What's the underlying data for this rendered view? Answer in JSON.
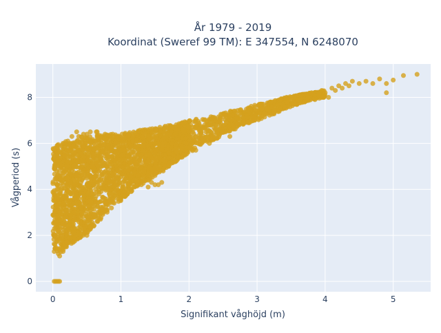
{
  "chart_data": {
    "type": "scatter",
    "title_lines": [
      "År 1979 - 2019",
      "Koordinat (Sweref 99 TM): E 347554, N 6248070"
    ],
    "xlabel": "Signifikant våghöjd (m)",
    "ylabel": "Vågperiod (s)",
    "xlim": [
      -0.25,
      5.55
    ],
    "ylim": [
      -0.45,
      9.45
    ],
    "x_ticks": [
      0,
      1,
      2,
      3,
      4,
      5
    ],
    "x_tick_labels": [
      "0",
      "1",
      "2",
      "3",
      "4",
      "5"
    ],
    "y_ticks": [
      0,
      2,
      4,
      6,
      8
    ],
    "y_tick_labels": [
      "0",
      "2",
      "4",
      "6",
      "8"
    ],
    "grid": true,
    "series": [
      {
        "color": "#d4a11e",
        "points": [
          [
            0.02,
            0.0
          ],
          [
            0.04,
            0.0
          ],
          [
            0.06,
            0.0
          ],
          [
            0.08,
            0.0
          ],
          [
            0.1,
            0.0
          ],
          [
            0.02,
            1.3
          ],
          [
            0.03,
            1.6
          ],
          [
            0.04,
            2.0
          ],
          [
            0.05,
            2.6
          ],
          [
            0.05,
            3.3
          ],
          [
            0.06,
            4.0
          ],
          [
            0.06,
            4.8
          ],
          [
            0.07,
            5.3
          ],
          [
            0.07,
            5.8
          ],
          [
            0.08,
            1.2
          ],
          [
            0.09,
            2.2
          ],
          [
            0.1,
            3.0
          ],
          [
            0.1,
            3.8
          ],
          [
            0.11,
            4.4
          ],
          [
            0.12,
            5.0
          ],
          [
            0.12,
            5.6
          ],
          [
            0.13,
            1.4
          ],
          [
            0.14,
            2.5
          ],
          [
            0.15,
            3.4
          ],
          [
            0.15,
            4.2
          ],
          [
            0.16,
            4.9
          ],
          [
            0.17,
            5.5
          ],
          [
            0.18,
            6.0
          ],
          [
            0.18,
            1.6
          ],
          [
            0.19,
            2.8
          ],
          [
            0.2,
            3.6
          ],
          [
            0.21,
            4.5
          ],
          [
            0.22,
            5.2
          ],
          [
            0.23,
            5.8
          ],
          [
            0.24,
            1.9
          ],
          [
            0.25,
            2.6
          ],
          [
            0.26,
            3.3
          ],
          [
            0.27,
            4.1
          ],
          [
            0.28,
            4.8
          ],
          [
            0.29,
            5.4
          ],
          [
            0.3,
            5.9
          ],
          [
            0.31,
            2.1
          ],
          [
            0.32,
            3.0
          ],
          [
            0.34,
            3.8
          ],
          [
            0.35,
            4.6
          ],
          [
            0.36,
            5.2
          ],
          [
            0.37,
            5.7
          ],
          [
            0.38,
            6.3
          ],
          [
            0.4,
            2.4
          ],
          [
            0.42,
            3.2
          ],
          [
            0.44,
            4.0
          ],
          [
            0.45,
            4.8
          ],
          [
            0.46,
            5.4
          ],
          [
            0.48,
            6.0
          ],
          [
            0.5,
            6.4
          ],
          [
            0.52,
            2.8
          ],
          [
            0.54,
            3.5
          ],
          [
            0.56,
            4.3
          ],
          [
            0.58,
            5.0
          ],
          [
            0.6,
            5.5
          ],
          [
            0.62,
            6.1
          ],
          [
            0.64,
            6.5
          ],
          [
            0.66,
            3.0
          ],
          [
            0.68,
            3.8
          ],
          [
            0.7,
            4.4
          ],
          [
            0.72,
            5.0
          ],
          [
            0.74,
            5.6
          ],
          [
            0.76,
            6.2
          ],
          [
            0.78,
            3.4
          ],
          [
            0.8,
            4.0
          ],
          [
            0.82,
            4.6
          ],
          [
            0.84,
            5.2
          ],
          [
            0.86,
            5.8
          ],
          [
            0.88,
            6.4
          ],
          [
            0.9,
            3.6
          ],
          [
            0.92,
            4.2
          ],
          [
            0.95,
            4.8
          ],
          [
            0.98,
            5.3
          ],
          [
            1.0,
            5.7
          ],
          [
            1.02,
            6.2
          ],
          [
            1.05,
            3.9
          ],
          [
            1.08,
            4.5
          ],
          [
            1.1,
            5.0
          ],
          [
            1.12,
            5.5
          ],
          [
            1.15,
            5.9
          ],
          [
            1.18,
            6.3
          ],
          [
            1.2,
            4.1
          ],
          [
            1.25,
            4.6
          ],
          [
            1.28,
            5.1
          ],
          [
            1.3,
            5.5
          ],
          [
            1.33,
            5.9
          ],
          [
            1.36,
            6.4
          ],
          [
            1.4,
            4.4
          ],
          [
            1.45,
            4.9
          ],
          [
            1.5,
            5.3
          ],
          [
            1.52,
            5.7
          ],
          [
            1.55,
            6.0
          ],
          [
            1.58,
            6.5
          ],
          [
            1.62,
            4.8
          ],
          [
            1.65,
            5.2
          ],
          [
            1.7,
            5.6
          ],
          [
            1.75,
            6.0
          ],
          [
            1.8,
            6.4
          ],
          [
            1.85,
            5.4
          ],
          [
            1.9,
            5.8
          ],
          [
            1.95,
            6.2
          ],
          [
            2.0,
            6.5
          ],
          [
            2.05,
            6.0
          ],
          [
            2.1,
            6.3
          ],
          [
            2.15,
            6.6
          ],
          [
            2.2,
            6.1
          ],
          [
            2.25,
            6.5
          ],
          [
            2.3,
            6.8
          ],
          [
            2.35,
            6.3
          ],
          [
            2.4,
            6.7
          ],
          [
            2.45,
            7.0
          ],
          [
            2.5,
            6.5
          ],
          [
            2.55,
            6.9
          ],
          [
            2.6,
            7.2
          ],
          [
            2.65,
            6.7
          ],
          [
            2.7,
            7.1
          ],
          [
            2.75,
            7.3
          ],
          [
            2.8,
            6.9
          ],
          [
            2.85,
            7.2
          ],
          [
            2.9,
            7.5
          ],
          [
            2.95,
            7.1
          ],
          [
            3.0,
            7.4
          ],
          [
            3.05,
            7.7
          ],
          [
            3.1,
            7.3
          ],
          [
            3.15,
            7.5
          ],
          [
            3.2,
            7.8
          ],
          [
            3.25,
            7.4
          ],
          [
            3.3,
            7.7
          ],
          [
            3.35,
            7.9
          ],
          [
            3.4,
            7.6
          ],
          [
            3.45,
            7.8
          ],
          [
            3.5,
            8.0
          ],
          [
            3.55,
            7.7
          ],
          [
            3.6,
            7.9
          ],
          [
            3.65,
            8.1
          ],
          [
            3.7,
            7.8
          ],
          [
            3.75,
            8.0
          ],
          [
            3.8,
            8.2
          ],
          [
            3.85,
            7.9
          ],
          [
            3.9,
            8.1
          ],
          [
            3.95,
            8.3
          ],
          [
            4.0,
            8.2
          ],
          [
            4.05,
            8.0
          ],
          [
            4.1,
            8.4
          ],
          [
            4.15,
            8.3
          ],
          [
            4.2,
            8.5
          ],
          [
            4.25,
            8.4
          ],
          [
            4.3,
            8.6
          ],
          [
            4.35,
            8.5
          ],
          [
            4.4,
            8.7
          ],
          [
            4.5,
            8.6
          ],
          [
            4.6,
            8.7
          ],
          [
            4.7,
            8.6
          ],
          [
            4.8,
            8.8
          ],
          [
            4.9,
            8.6
          ],
          [
            5.0,
            8.75
          ],
          [
            5.15,
            8.95
          ],
          [
            5.35,
            9.0
          ],
          [
            4.9,
            8.2
          ],
          [
            0.45,
            6.4
          ],
          [
            0.55,
            6.5
          ],
          [
            0.65,
            6.5
          ],
          [
            0.35,
            6.5
          ],
          [
            0.28,
            6.3
          ],
          [
            0.22,
            6.1
          ],
          [
            0.5,
            2.0
          ],
          [
            0.6,
            2.4
          ],
          [
            0.7,
            2.7
          ],
          [
            0.8,
            3.1
          ],
          [
            0.9,
            3.4
          ],
          [
            1.0,
            3.6
          ],
          [
            1.15,
            3.9
          ],
          [
            1.3,
            4.2
          ],
          [
            1.5,
            4.6
          ],
          [
            1.7,
            5.0
          ],
          [
            1.9,
            5.4
          ],
          [
            2.1,
            5.7
          ],
          [
            2.3,
            6.0
          ],
          [
            2.6,
            6.3
          ],
          [
            1.6,
            4.3
          ],
          [
            1.5,
            4.2
          ],
          [
            1.45,
            4.3
          ],
          [
            1.4,
            4.1
          ],
          [
            1.55,
            4.2
          ],
          [
            0.1,
            1.1
          ],
          [
            0.15,
            1.3
          ],
          [
            0.2,
            1.5
          ],
          [
            0.3,
            1.7
          ],
          [
            0.4,
            1.9
          ]
        ],
        "density_band": [
          [
            0.0,
            1.5,
            5.8
          ],
          [
            0.1,
            1.2,
            6.0
          ],
          [
            0.2,
            1.5,
            6.1
          ],
          [
            0.3,
            1.7,
            6.2
          ],
          [
            0.4,
            1.9,
            6.3
          ],
          [
            0.5,
            2.1,
            6.3
          ],
          [
            0.6,
            2.4,
            6.3
          ],
          [
            0.7,
            2.7,
            6.4
          ],
          [
            0.8,
            3.0,
            6.4
          ],
          [
            0.9,
            3.3,
            6.4
          ],
          [
            1.0,
            3.5,
            6.4
          ],
          [
            1.1,
            3.8,
            6.5
          ],
          [
            1.2,
            4.0,
            6.5
          ],
          [
            1.3,
            4.2,
            6.6
          ],
          [
            1.4,
            4.4,
            6.6
          ],
          [
            1.5,
            4.6,
            6.7
          ],
          [
            1.6,
            4.8,
            6.7
          ],
          [
            1.7,
            5.0,
            6.8
          ],
          [
            1.8,
            5.2,
            6.8
          ],
          [
            1.9,
            5.4,
            6.9
          ],
          [
            2.0,
            5.6,
            7.0
          ],
          [
            2.2,
            5.9,
            7.1
          ],
          [
            2.4,
            6.2,
            7.2
          ],
          [
            2.6,
            6.5,
            7.4
          ],
          [
            2.8,
            6.8,
            7.5
          ],
          [
            3.0,
            7.0,
            7.7
          ],
          [
            3.2,
            7.2,
            7.8
          ],
          [
            3.4,
            7.5,
            8.0
          ],
          [
            3.6,
            7.7,
            8.1
          ],
          [
            3.8,
            7.9,
            8.2
          ],
          [
            4.0,
            8.0,
            8.3
          ]
        ]
      }
    ]
  }
}
